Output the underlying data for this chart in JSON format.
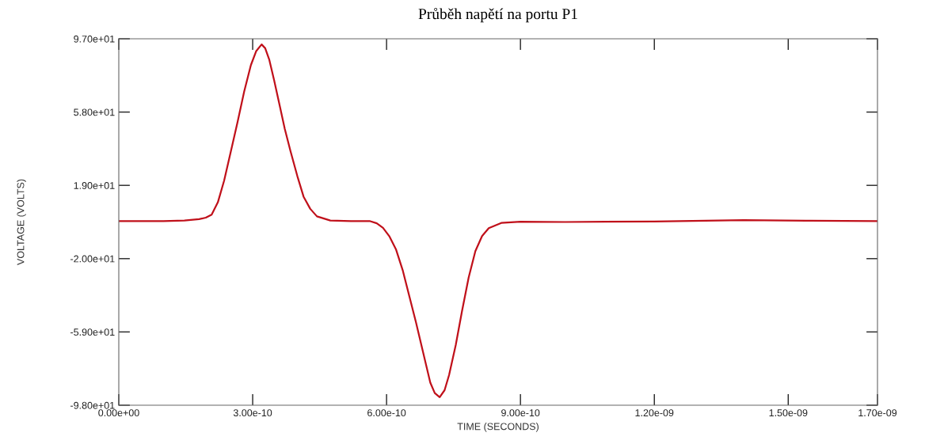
{
  "chart_data": {
    "type": "line",
    "title": "Průběh napětí na portu P1",
    "xlabel": "TIME (SECONDS)",
    "ylabel": "VOLTAGE (VOLTS)",
    "xlim": [
      0,
      1.7e-09
    ],
    "ylim": [
      -98,
      97
    ],
    "xticks": [
      {
        "value": 0,
        "label": "0.00e+00"
      },
      {
        "value": 3e-10,
        "label": "3.00e-10"
      },
      {
        "value": 6e-10,
        "label": "6.00e-10"
      },
      {
        "value": 9e-10,
        "label": "9.00e-10"
      },
      {
        "value": 1.2e-09,
        "label": "1.20e-09"
      },
      {
        "value": 1.5e-09,
        "label": "1.50e-09"
      },
      {
        "value": 1.7e-09,
        "label": "1.70e-09"
      }
    ],
    "yticks": [
      {
        "value": 97,
        "label": "9.70e+01"
      },
      {
        "value": 58,
        "label": "5.80e+01"
      },
      {
        "value": 19,
        "label": "1.90e+01"
      },
      {
        "value": -20,
        "label": "-2.00e+01"
      },
      {
        "value": -59,
        "label": "-5.90e+01"
      },
      {
        "value": -98,
        "label": "-9.80e+01"
      }
    ],
    "grid": false,
    "legend": false,
    "marker": "none",
    "line_style": "solid",
    "series": [
      {
        "color": "#c0101a",
        "x": [
          0,
          1e-10,
          1.47e-10,
          1.8e-10,
          1.95e-10,
          2.08e-10,
          2.22e-10,
          2.36e-10,
          2.51e-10,
          2.66e-10,
          2.81e-10,
          2.96e-10,
          3.08e-10,
          3.2e-10,
          3.28e-10,
          3.37e-10,
          3.48e-10,
          3.6e-10,
          3.72e-10,
          3.85e-10,
          4e-10,
          4.14e-10,
          4.29e-10,
          4.44e-10,
          4.74e-10,
          5.2e-10,
          5.62e-10,
          5.78e-10,
          5.92e-10,
          6.06e-10,
          6.21e-10,
          6.36e-10,
          6.51e-10,
          6.66e-10,
          6.8e-10,
          6.9e-10,
          6.98e-10,
          7.08e-10,
          7.19e-10,
          7.3e-10,
          7.4e-10,
          7.55e-10,
          7.69e-10,
          7.84e-10,
          7.99e-10,
          8.14e-10,
          8.29e-10,
          8.57e-10,
          9e-10,
          1e-09,
          1.2e-09,
          1.4e-09,
          1.55e-09,
          1.7e-09
        ],
        "values": [
          0,
          0,
          0.3,
          1,
          1.8,
          3.4,
          10,
          21.5,
          37,
          52.6,
          69,
          83,
          90.5,
          94,
          92,
          86,
          75,
          62,
          49,
          37,
          24,
          13,
          6.5,
          2.5,
          0.3,
          0,
          0,
          -1.2,
          -3.6,
          -8,
          -15,
          -26,
          -40,
          -54,
          -68,
          -78,
          -86,
          -91.5,
          -93.7,
          -90,
          -82,
          -66,
          -48,
          -30,
          -16,
          -8,
          -3.8,
          -1,
          -0.3,
          -0.5,
          -0.2,
          0.5,
          0.2,
          0
        ]
      }
    ]
  }
}
